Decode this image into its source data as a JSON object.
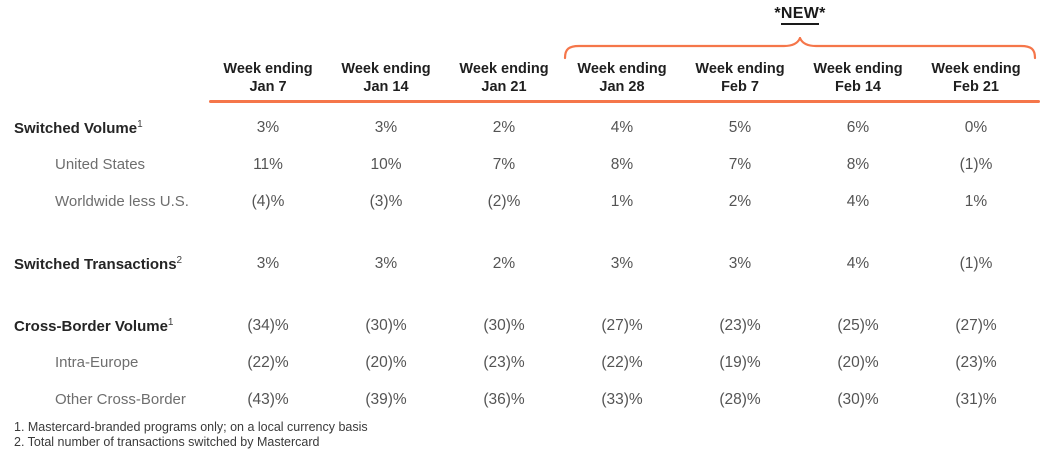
{
  "accent_color": "#F5764A",
  "new_badge": {
    "asterisk_left": "*",
    "label": "NEW",
    "asterisk_right": "*"
  },
  "table": {
    "column_headers": [
      {
        "line1": "Week ending",
        "line2": "Jan 7"
      },
      {
        "line1": "Week ending",
        "line2": "Jan 14"
      },
      {
        "line1": "Week ending",
        "line2": "Jan 21"
      },
      {
        "line1": "Week ending",
        "line2": "Jan 28"
      },
      {
        "line1": "Week ending",
        "line2": "Feb 7"
      },
      {
        "line1": "Week ending",
        "line2": "Feb 14"
      },
      {
        "line1": "Week ending",
        "line2": "Feb 21"
      }
    ],
    "new_columns_start_index": 3,
    "rows": [
      {
        "label": "Switched Volume",
        "sup": "1",
        "indent": false,
        "gap_before": false,
        "values": [
          "3%",
          "3%",
          "2%",
          "4%",
          "5%",
          "6%",
          "0%"
        ]
      },
      {
        "label": "United States",
        "sup": "",
        "indent": true,
        "gap_before": false,
        "values": [
          "11%",
          "10%",
          "7%",
          "8%",
          "7%",
          "8%",
          "(1)%"
        ]
      },
      {
        "label": "Worldwide less U.S.",
        "sup": "",
        "indent": true,
        "gap_before": false,
        "values": [
          "(4)%",
          "(3)%",
          "(2)%",
          "1%",
          "2%",
          "4%",
          "1%"
        ]
      },
      {
        "label": "Switched Transactions",
        "sup": "2",
        "indent": false,
        "gap_before": true,
        "values": [
          "3%",
          "3%",
          "2%",
          "3%",
          "3%",
          "4%",
          "(1)%"
        ]
      },
      {
        "label": "Cross-Border Volume",
        "sup": "1",
        "indent": false,
        "gap_before": true,
        "values": [
          "(34)%",
          "(30)%",
          "(30)%",
          "(27)%",
          "(23)%",
          "(25)%",
          "(27)%"
        ]
      },
      {
        "label": "Intra-Europe",
        "sup": "",
        "indent": true,
        "gap_before": false,
        "values": [
          "(22)%",
          "(20)%",
          "(23)%",
          "(22)%",
          "(19)%",
          "(20)%",
          "(23)%"
        ]
      },
      {
        "label": "Other Cross-Border",
        "sup": "",
        "indent": true,
        "gap_before": false,
        "values": [
          "(43)%",
          "(39)%",
          "(36)%",
          "(33)%",
          "(28)%",
          "(30)%",
          "(31)%"
        ]
      }
    ]
  },
  "footnotes": [
    "1. Mastercard-branded programs only; on a local currency basis",
    "2. Total number of transactions switched by Mastercard"
  ]
}
